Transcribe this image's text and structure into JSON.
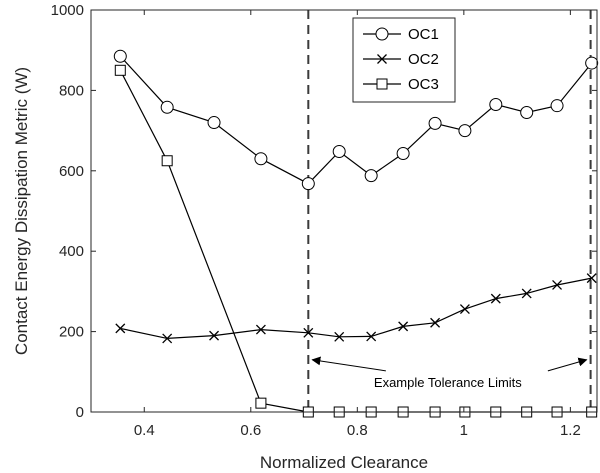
{
  "chart_data": {
    "type": "line",
    "title": "",
    "xlabel": "Normalized Clearance",
    "ylabel": "Contact Energy Dissipation Metric (W)",
    "xlim": [
      0.3,
      1.25
    ],
    "ylim": [
      0,
      1000
    ],
    "xticks": [
      0.4,
      0.6,
      0.8,
      1,
      1.2
    ],
    "xtick_labels": [
      "0.4",
      "0.6",
      "0.8",
      "1",
      "1.2"
    ],
    "yticks": [
      0,
      200,
      400,
      600,
      800,
      1000
    ],
    "ytick_labels": [
      "0",
      "200",
      "400",
      "600",
      "800",
      "1000"
    ],
    "grid": false,
    "legend_position": "top-center",
    "series": [
      {
        "name": "OC1",
        "marker": "circle",
        "color": "#000000",
        "x": [
          0.355,
          0.443,
          0.531,
          0.619,
          0.708,
          0.766,
          0.826,
          0.886,
          0.946,
          1.002,
          1.06,
          1.118,
          1.175,
          1.24
        ],
        "y": [
          885,
          758,
          720,
          630,
          568,
          648,
          588,
          643,
          718,
          700,
          765,
          745,
          762,
          868
        ]
      },
      {
        "name": "OC2",
        "marker": "x",
        "color": "#000000",
        "x": [
          0.355,
          0.443,
          0.531,
          0.619,
          0.708,
          0.766,
          0.826,
          0.886,
          0.946,
          1.002,
          1.06,
          1.118,
          1.175,
          1.24
        ],
        "y": [
          208,
          183,
          190,
          205,
          197,
          187,
          188,
          213,
          222,
          256,
          282,
          295,
          316,
          333
        ]
      },
      {
        "name": "OC3",
        "marker": "square",
        "color": "#000000",
        "x": [
          0.355,
          0.443,
          0.619,
          0.708,
          0.766,
          0.826,
          0.886,
          0.946,
          1.002,
          1.06,
          1.118,
          1.175,
          1.24
        ],
        "y": [
          850,
          625,
          22,
          0,
          0,
          0,
          0,
          0,
          0,
          0,
          0,
          0,
          0
        ]
      }
    ],
    "reference_lines": [
      {
        "orientation": "vertical",
        "x": 0.708,
        "style": "dashed"
      },
      {
        "orientation": "vertical",
        "x": 1.238,
        "style": "dashed"
      }
    ],
    "annotations": [
      {
        "text": "Example Tolerance Limits",
        "anchor": [
          0.97,
          75
        ],
        "arrows_to": [
          [
            0.708,
            135
          ],
          [
            1.238,
            135
          ]
        ]
      }
    ]
  }
}
